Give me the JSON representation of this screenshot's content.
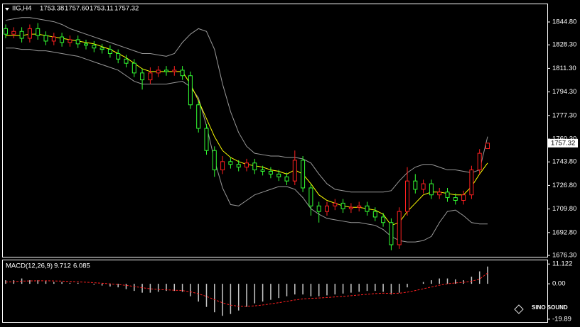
{
  "chart_data": [
    {
      "type": "candlestick",
      "title": "IIG,H4",
      "header_values": [
        "1753.38",
        "1757.60",
        "1753.11",
        "1757.32"
      ],
      "up_color": "#ff2020",
      "down_color": "#33ff33",
      "open": [
        1840,
        1836,
        1838,
        1833,
        1840,
        1835,
        1831,
        1834,
        1830,
        1832,
        1829,
        1828,
        1826,
        1825,
        1822,
        1818,
        1815,
        1808,
        1803,
        1808,
        1810,
        1809,
        1810,
        1806,
        1785,
        1768,
        1752,
        1738,
        1744,
        1742,
        1740,
        1743,
        1738,
        1737,
        1735,
        1733,
        1730,
        1745,
        1725,
        1712,
        1708,
        1712,
        1714,
        1710,
        1711,
        1712,
        1708,
        1704,
        1700,
        1684,
        1708,
        1730,
        1724,
        1728,
        1720,
        1722,
        1718,
        1716,
        1720,
        1738,
        1753.38
      ],
      "high": [
        1843,
        1841,
        1841,
        1843,
        1844,
        1838,
        1837,
        1837,
        1835,
        1835,
        1832,
        1831,
        1829,
        1828,
        1825,
        1821,
        1818,
        1811,
        1812,
        1813,
        1813,
        1813,
        1813,
        1809,
        1788,
        1771,
        1755,
        1748,
        1747,
        1745,
        1746,
        1746,
        1741,
        1740,
        1738,
        1736,
        1752,
        1748,
        1728,
        1715,
        1715,
        1717,
        1717,
        1714,
        1715,
        1715,
        1711,
        1707,
        1703,
        1711,
        1740,
        1735,
        1731,
        1731,
        1725,
        1725,
        1721,
        1723,
        1741,
        1753,
        1757.6
      ],
      "low": [
        1833,
        1833,
        1830,
        1830,
        1832,
        1828,
        1828,
        1827,
        1827,
        1826,
        1825,
        1823,
        1822,
        1819,
        1815,
        1812,
        1805,
        1796,
        1800,
        1805,
        1806,
        1806,
        1803,
        1782,
        1765,
        1749,
        1733,
        1735,
        1739,
        1737,
        1737,
        1735,
        1734,
        1732,
        1730,
        1727,
        1727,
        1722,
        1705,
        1700,
        1705,
        1709,
        1707,
        1707,
        1708,
        1705,
        1701,
        1697,
        1680,
        1681,
        1705,
        1721,
        1721,
        1717,
        1717,
        1715,
        1713,
        1713,
        1717,
        1735,
        1753.11
      ],
      "close": [
        1836,
        1838,
        1833,
        1840,
        1835,
        1831,
        1834,
        1830,
        1832,
        1829,
        1828,
        1826,
        1825,
        1822,
        1818,
        1815,
        1808,
        1803,
        1808,
        1810,
        1809,
        1810,
        1806,
        1785,
        1768,
        1752,
        1738,
        1744,
        1742,
        1740,
        1743,
        1738,
        1737,
        1735,
        1733,
        1730,
        1745,
        1725,
        1712,
        1708,
        1712,
        1714,
        1710,
        1711,
        1712,
        1708,
        1704,
        1700,
        1684,
        1708,
        1730,
        1724,
        1728,
        1720,
        1722,
        1718,
        1716,
        1720,
        1738,
        1750,
        1757.32
      ],
      "series": [
        {
          "color": "#9a9a9a",
          "values": [
            1846,
            1847,
            1848,
            1848,
            1847,
            1846,
            1845,
            1843,
            1840,
            1838,
            1836,
            1834,
            1832,
            1830,
            1828,
            1826,
            1824,
            1822,
            1822,
            1821,
            1820,
            1822,
            1830,
            1836,
            1840,
            1838,
            1825,
            1800,
            1780,
            1765,
            1755,
            1750,
            1749,
            1748,
            1748,
            1747,
            1747,
            1746,
            1743,
            1735,
            1728,
            1724,
            1723,
            1722,
            1722,
            1722,
            1722,
            1722,
            1723,
            1730,
            1736,
            1740,
            1742,
            1742,
            1740,
            1738,
            1738,
            1737,
            1736,
            1738,
            1762
          ]
        },
        {
          "color": "#9a9a9a",
          "values": [
            1826,
            1826,
            1825,
            1825,
            1824,
            1824,
            1823,
            1822,
            1821,
            1820,
            1818,
            1816,
            1814,
            1812,
            1810,
            1806,
            1802,
            1800,
            1800,
            1800,
            1800,
            1801,
            1802,
            1798,
            1790,
            1770,
            1745,
            1725,
            1713,
            1712,
            1716,
            1720,
            1722,
            1724,
            1726,
            1726,
            1724,
            1718,
            1710,
            1706,
            1703,
            1702,
            1701,
            1700,
            1700,
            1699,
            1698,
            1695,
            1690,
            1687,
            1686,
            1686,
            1687,
            1690,
            1700,
            1708,
            1709,
            1705,
            1700,
            1699,
            1699
          ]
        },
        {
          "color": "#ffff00",
          "values": [
            1835,
            1835,
            1835,
            1836,
            1836,
            1835,
            1834,
            1833,
            1832,
            1831,
            1830,
            1829,
            1827,
            1825,
            1822,
            1819,
            1815,
            1811,
            1809,
            1809,
            1809,
            1809,
            1809,
            1800,
            1788,
            1775,
            1762,
            1752,
            1747,
            1744,
            1742,
            1741,
            1740,
            1738,
            1737,
            1735,
            1738,
            1735,
            1728,
            1720,
            1716,
            1714,
            1712,
            1711,
            1711,
            1710,
            1709,
            1706,
            1698,
            1700,
            1708,
            1714,
            1720,
            1722,
            1722,
            1721,
            1720,
            1720,
            1726,
            1735,
            1743
          ]
        }
      ],
      "ylim": [
        1675.3,
        1858.1
      ],
      "yticks": [
        {
          "value": 1844.8,
          "label": "1844.80"
        },
        {
          "value": 1828.3,
          "label": "1828.30"
        },
        {
          "value": 1811.3,
          "label": "1811.30"
        },
        {
          "value": 1794.3,
          "label": "1794.30"
        },
        {
          "value": 1777.3,
          "label": "1777.30"
        },
        {
          "value": 1760.3,
          "label": "1760.30"
        },
        {
          "value": 1743.8,
          "label": "1743.80"
        },
        {
          "value": 1726.8,
          "label": "1726.80"
        },
        {
          "value": 1709.8,
          "label": "1709.80"
        },
        {
          "value": 1692.8,
          "label": "1692.80"
        },
        {
          "value": 1676.3,
          "label": "1676.30"
        }
      ]
    },
    {
      "type": "macd",
      "title": "MACD(12,26,9)",
      "last_macd": 9.712,
      "last_signal": 6.085,
      "hist_color": "#c8c8c8",
      "signal_color": "#ff2020",
      "values": [
        2,
        2,
        3,
        2,
        2,
        1.5,
        1,
        1,
        0.5,
        0.5,
        0,
        -0.5,
        -1,
        -1.5,
        -2,
        -3,
        -4,
        -5,
        -5,
        -4.5,
        -4,
        -4,
        -4.5,
        -7,
        -10,
        -13,
        -16,
        -18,
        -17,
        -15,
        -13,
        -11,
        -10,
        -9,
        -8,
        -7,
        -6,
        -6,
        -7,
        -7,
        -6.5,
        -6,
        -5.5,
        -5,
        -4.5,
        -4,
        -4,
        -4.5,
        -6,
        -5,
        -2,
        0,
        1,
        2,
        3,
        3,
        2.5,
        2,
        4,
        7,
        9.712
      ],
      "signal": [
        1,
        1.2,
        1.5,
        1.6,
        1.7,
        1.7,
        1.6,
        1.5,
        1.3,
        1.1,
        0.9,
        0.6,
        0.3,
        0,
        -0.4,
        -0.9,
        -1.5,
        -2.2,
        -2.8,
        -3.2,
        -3.4,
        -3.6,
        -3.8,
        -4.5,
        -5.6,
        -7.1,
        -8.9,
        -10.7,
        -12,
        -12.6,
        -12.7,
        -12.4,
        -11.9,
        -11.3,
        -10.6,
        -9.9,
        -9.1,
        -8.5,
        -8.2,
        -8,
        -7.7,
        -7.4,
        -7.1,
        -6.7,
        -6.3,
        -5.9,
        -5.5,
        -5.3,
        -5.4,
        -5.3,
        -4.7,
        -3.8,
        -2.8,
        -1.8,
        -0.8,
        0,
        0.5,
        0.8,
        1.5,
        2.6,
        6.085
      ],
      "ylim": [
        -20.7,
        13.2
      ],
      "yticks": [
        11.122,
        {
          "value": 0,
          "label": "0.00"
        },
        -19.89
      ]
    }
  ],
  "watermark": "SINO SOUND"
}
